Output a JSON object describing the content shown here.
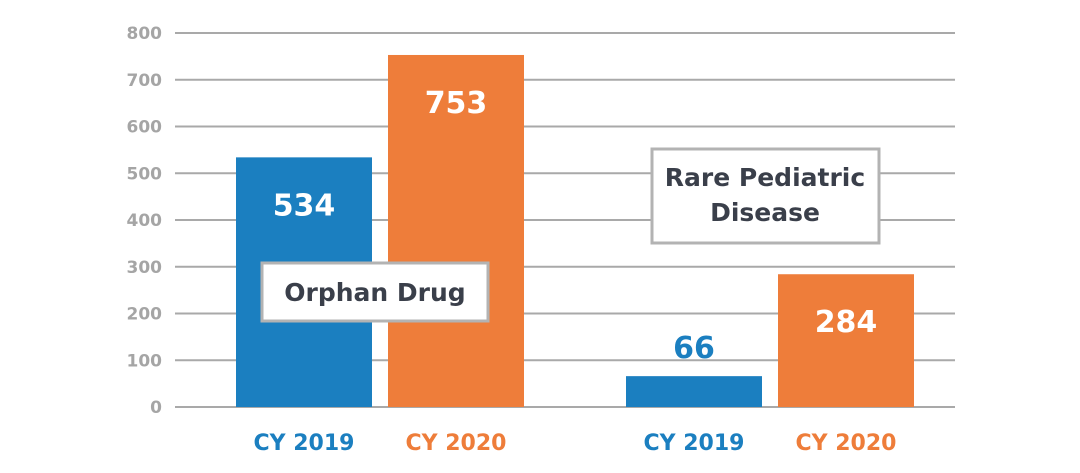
{
  "chart_data": {
    "type": "bar",
    "ylim": [
      0,
      800
    ],
    "yticks": [
      0,
      100,
      200,
      300,
      400,
      500,
      600,
      700,
      800
    ],
    "grid": true,
    "groups": [
      {
        "name": "Orphan Drug",
        "bars": [
          {
            "category": "CY 2019",
            "value": 534,
            "label": "534",
            "color": "#1b7fc0",
            "label_color": "#ffffff"
          },
          {
            "category": "CY 2020",
            "value": 753,
            "label": "753",
            "color": "#ee7d3a",
            "label_color": "#ffffff"
          }
        ]
      },
      {
        "name": "Rare Pediatric Disease",
        "name_lines": [
          "Rare Pediatric",
          "Disease"
        ],
        "bars": [
          {
            "category": "CY 2019",
            "value": 66,
            "label": "66",
            "color": "#1b7fc0",
            "label_color": "#1b7fc0"
          },
          {
            "category": "CY 2020",
            "value": 284,
            "label": "284",
            "color": "#ee7d3a",
            "label_color": "#ffffff"
          }
        ]
      }
    ]
  }
}
